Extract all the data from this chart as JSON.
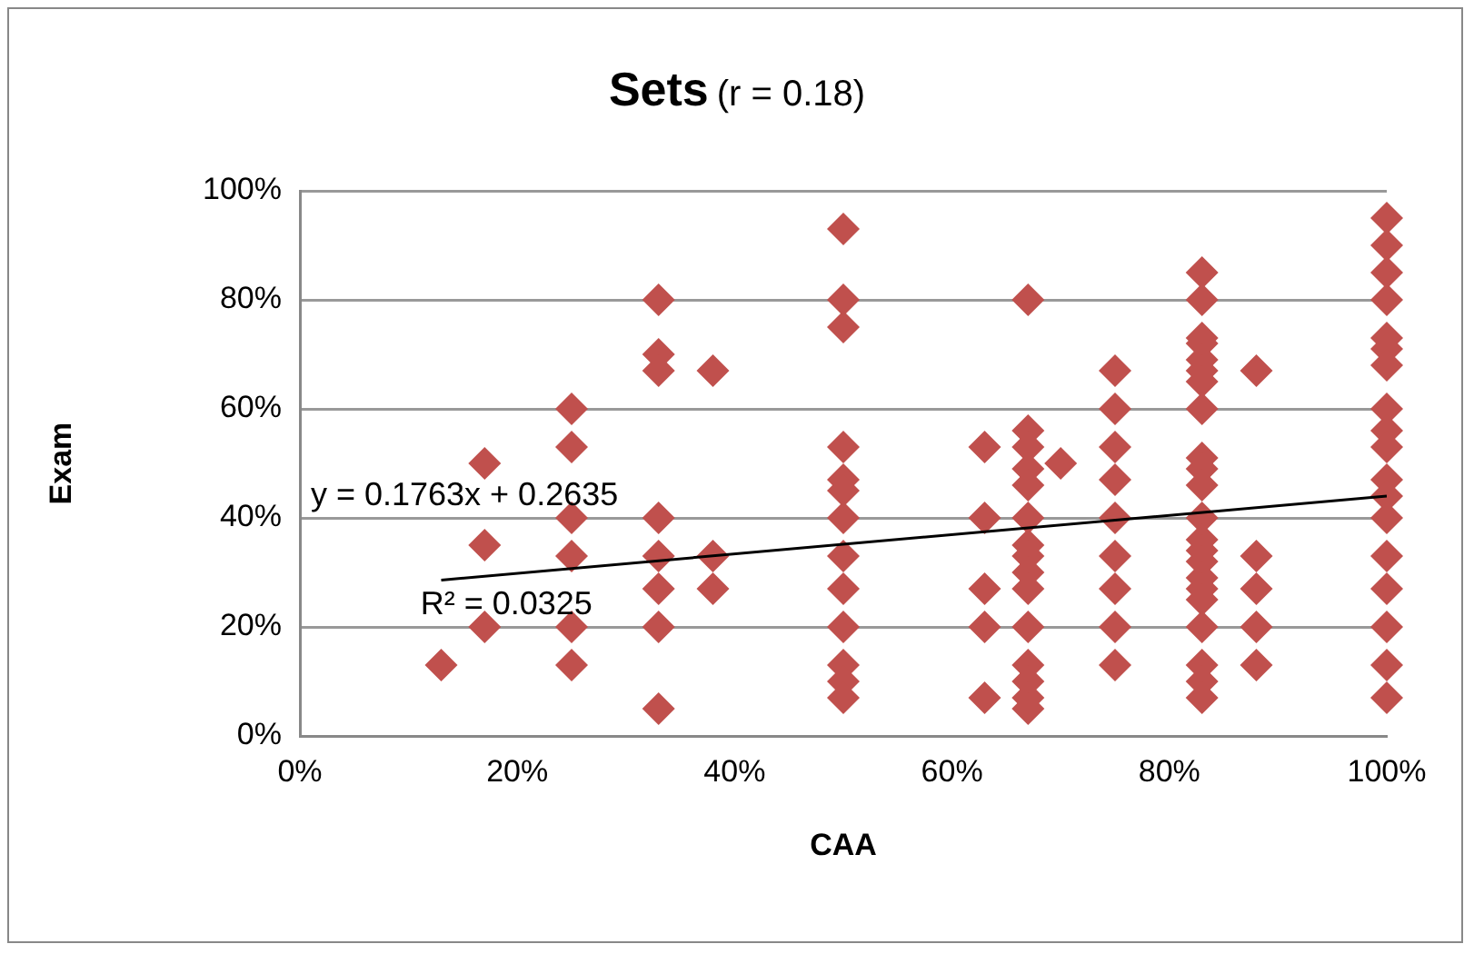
{
  "chart_data": {
    "type": "scatter",
    "title": "Sets",
    "subtitle": "(r = 0.18)",
    "xlabel": "CAA",
    "ylabel": "Exam",
    "series": [
      {
        "color": "#c0504d",
        "marker": "diamond",
        "x": [
          13,
          17,
          17,
          17,
          25,
          25,
          25,
          25,
          25,
          25,
          33,
          33,
          33,
          33,
          33,
          33,
          33,
          33,
          38,
          38,
          38,
          50,
          50,
          50,
          50,
          50,
          50,
          50,
          50,
          50,
          50,
          50,
          50,
          50,
          63,
          63,
          63,
          63,
          63,
          67,
          67,
          67,
          67,
          67,
          67,
          67,
          67,
          67,
          67,
          67,
          67,
          67,
          67,
          67,
          70,
          75,
          75,
          75,
          75,
          75,
          75,
          75,
          75,
          75,
          83,
          83,
          83,
          83,
          83,
          83,
          83,
          83,
          83,
          83,
          83,
          83,
          83,
          83,
          83,
          83,
          83,
          83,
          83,
          83,
          83,
          83,
          88,
          88,
          88,
          88,
          88,
          100,
          100,
          100,
          100,
          100,
          100,
          100,
          100,
          100,
          100,
          100,
          100,
          100,
          100,
          100,
          100,
          100,
          100
        ],
        "values": [
          13,
          50,
          35,
          20,
          60,
          53,
          40,
          33,
          20,
          13,
          80,
          70,
          67,
          40,
          33,
          27,
          20,
          5,
          67,
          33,
          27,
          93,
          80,
          75,
          53,
          47,
          45,
          40,
          33,
          27,
          20,
          13,
          10,
          7,
          53,
          40,
          27,
          20,
          7,
          80,
          56,
          53,
          49,
          46,
          40,
          35,
          33,
          30,
          27,
          20,
          13,
          10,
          7,
          5,
          50,
          67,
          60,
          53,
          47,
          40,
          33,
          27,
          20,
          13,
          85,
          80,
          73,
          72,
          69,
          67,
          65,
          60,
          51,
          49,
          46,
          40,
          36,
          34,
          32,
          29,
          27,
          25,
          20,
          13,
          10,
          7,
          67,
          33,
          27,
          20,
          13,
          95,
          90,
          85,
          80,
          73,
          71,
          68,
          60,
          56,
          53,
          47,
          44,
          40,
          33,
          27,
          20,
          13,
          7
        ]
      },
      {
        "type": "line",
        "color": "#000000",
        "marker": "none",
        "x": [
          13,
          100
        ],
        "values": [
          28.6,
          44.0
        ]
      }
    ],
    "annotations": [
      "y = 0.1763x + 0.2635",
      "R² = 0.0325"
    ],
    "xlim": [
      0,
      100
    ],
    "xticks": [
      {
        "value": 0,
        "label": "0%"
      },
      {
        "value": 20,
        "label": "20%"
      },
      {
        "value": 40,
        "label": "40%"
      },
      {
        "value": 60,
        "label": "60%"
      },
      {
        "value": 80,
        "label": "80%"
      },
      {
        "value": 100,
        "label": "100%"
      }
    ],
    "ylim": [
      0,
      100
    ],
    "yticks": [
      {
        "value": 0,
        "label": "0%"
      },
      {
        "value": 20,
        "label": "20%"
      },
      {
        "value": 40,
        "label": "40%"
      },
      {
        "value": 60,
        "label": "60%"
      },
      {
        "value": 80,
        "label": "80%"
      },
      {
        "value": 100,
        "label": "100%"
      }
    ],
    "grid": "y",
    "legend": false,
    "line_style": "solid"
  }
}
